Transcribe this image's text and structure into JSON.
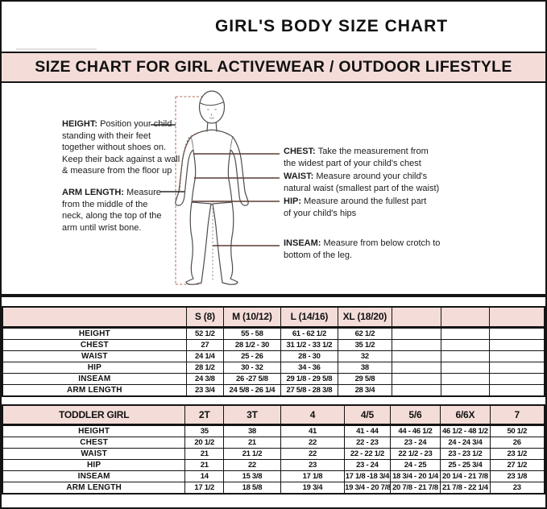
{
  "page": {
    "title": "GIRL'S BODY SIZE CHART",
    "banner": "SIZE CHART FOR GIRL ACTIVEWEAR / OUTDOOR LIFESTYLE"
  },
  "colors": {
    "banner_bg": "#f4ddd9",
    "table_header_bg": "#f4ddd9",
    "border": "#141414",
    "height_line": "#bf8a7a",
    "figure_outline": "#4d4d4d",
    "measure_line": "#5a3c33"
  },
  "diagram": {
    "annotations": {
      "height": {
        "label": "HEIGHT:",
        "lines": [
          "Position your child",
          "standing with their feet",
          "together without shoes on.",
          "Keep their back against a wall",
          "& measure from the floor up"
        ]
      },
      "arm_length": {
        "label": "ARM LENGTH:",
        "lines": [
          "Measure",
          "from the middle of the",
          "neck, along the top of the",
          "arm until wrist bone."
        ]
      },
      "chest": {
        "label": "CHEST:",
        "lines": [
          "Take the measurement from",
          "the widest part of your child's chest"
        ]
      },
      "waist": {
        "label": "WAIST:",
        "lines": [
          "Measure around your child's",
          "natural waist (smallest part of the waist)"
        ]
      },
      "hip": {
        "label": "HIP:",
        "lines": [
          "Measure around the fullest part",
          "of your child's hips"
        ]
      },
      "inseam": {
        "label": "INSEAM:",
        "lines": [
          "Measure from below crotch to",
          "bottom of the leg."
        ]
      }
    }
  },
  "size_table": {
    "columns": [
      "",
      "S (8)",
      "M (10/12)",
      "L (14/16)",
      "XL (18/20)",
      "",
      "",
      ""
    ],
    "rows": [
      {
        "label": "HEIGHT",
        "values": [
          "52 1/2",
          "55 - 58",
          "61 - 62 1/2",
          "62 1/2",
          "",
          "",
          ""
        ]
      },
      {
        "label": "CHEST",
        "values": [
          "27",
          "28 1/2 - 30",
          "31 1/2 - 33 1/2",
          "35 1/2",
          "",
          "",
          ""
        ]
      },
      {
        "label": "WAIST",
        "values": [
          "24 1/4",
          "25 - 26",
          "28 - 30",
          "32",
          "",
          "",
          ""
        ]
      },
      {
        "label": "HIP",
        "values": [
          "28 1/2",
          "30 - 32",
          "34 - 36",
          "38",
          "",
          "",
          ""
        ]
      },
      {
        "label": "INSEAM",
        "values": [
          "24 3/8",
          "26 -27 5/8",
          "29 1/8 - 29 5/8",
          "29 5/8",
          "",
          "",
          ""
        ]
      },
      {
        "label": "ARM LENGTH",
        "values": [
          "23 3/4",
          "24 5/8 - 26 1/4",
          "27 5/8 - 28 3/8",
          "28 3/4",
          "",
          "",
          ""
        ]
      }
    ]
  },
  "toddler_table": {
    "columns": [
      "TODDLER GIRL",
      "2T",
      "3T",
      "4",
      "4/5",
      "5/6",
      "6/6X",
      "7"
    ],
    "rows": [
      {
        "label": "HEIGHT",
        "values": [
          "35",
          "38",
          "41",
          "41 - 44",
          "44 - 46 1/2",
          "46 1/2 - 48 1/2",
          "50 1/2"
        ]
      },
      {
        "label": "CHEST",
        "values": [
          "20 1/2",
          "21",
          "22",
          "22 - 23",
          "23 - 24",
          "24 - 24 3/4",
          "26"
        ]
      },
      {
        "label": "WAIST",
        "values": [
          "21",
          "21 1/2",
          "22",
          "22 - 22 1/2",
          "22 1/2 - 23",
          "23 - 23 1/2",
          "23 1/2"
        ]
      },
      {
        "label": "HIP",
        "values": [
          "21",
          "22",
          "23",
          "23 - 24",
          "24 - 25",
          "25 - 25 3/4",
          "27 1/2"
        ]
      },
      {
        "label": "INSEAM",
        "values": [
          "14",
          "15 3/8",
          "17 1/8",
          "17 1/8 -18 3/4",
          "18 3/4 - 20 1/4",
          "20 1/4 - 21 7/8",
          "23 1/8"
        ]
      },
      {
        "label": "ARM LENGTH",
        "values": [
          "17 1/2",
          "18 5/8",
          "19 3/4",
          "19 3/4 - 20 7/8",
          "20 7/8 - 21 7/8",
          "21 7/8 - 22 1/4",
          "23"
        ]
      }
    ]
  }
}
